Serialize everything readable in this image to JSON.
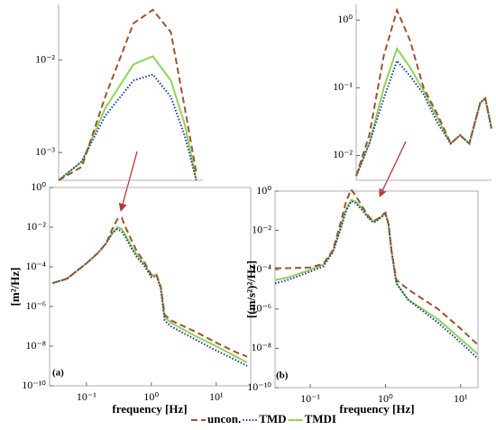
{
  "chart_data": [
    {
      "type": "line",
      "xlog": true,
      "ylog": true,
      "panel": "(a)",
      "xlabel": "frequency [Hz]",
      "ylabel": "[m²/Hz]",
      "xlim": [
        0.027,
        34
      ],
      "ylim": [
        1e-10,
        1
      ],
      "xticks": [
        {
          "value": 0.1,
          "label": "10⁻¹"
        },
        {
          "value": 1,
          "label": "10⁰"
        },
        {
          "value": 10,
          "label": "10¹"
        }
      ],
      "yticks": [
        {
          "value": 1e-10,
          "label": "10⁻¹⁰"
        },
        {
          "value": 1e-08,
          "label": "10⁻⁸"
        },
        {
          "value": 1e-06,
          "label": "10⁻⁶"
        },
        {
          "value": 0.0001,
          "label": "10⁻⁴"
        },
        {
          "value": 0.01,
          "label": "10⁻²"
        },
        {
          "value": 1,
          "label": "10⁰"
        }
      ],
      "x": [
        0.03,
        0.05,
        0.1,
        0.15,
        0.2,
        0.25,
        0.3,
        0.35,
        0.4,
        0.5,
        0.6,
        0.8,
        1,
        1.2,
        1.4,
        1.6,
        2,
        5,
        10,
        20,
        30
      ],
      "series": [
        {
          "name": "uncon.",
          "color": "#a0522d",
          "style": "dashed",
          "values": [
            1.5e-05,
            2.5e-05,
            0.00015,
            0.0005,
            0.0015,
            0.008,
            0.025,
            0.03,
            0.01,
            0.002,
            0.0006,
            0.00015,
            4e-05,
            4e-05,
            1e-05,
            4e-07,
            2e-07,
            5e-08,
            1.5e-08,
            5e-09,
            3e-09
          ]
        },
        {
          "name": "TMD",
          "color": "#1a3a9a",
          "style": "dotted",
          "values": [
            1.5e-05,
            2.5e-05,
            0.00015,
            0.0005,
            0.0015,
            0.005,
            0.008,
            0.006,
            0.003,
            0.0008,
            0.0003,
            0.0001,
            3e-05,
            3.5e-05,
            8e-06,
            2e-07,
            1e-07,
            2e-08,
            6e-09,
            2e-09,
            1e-09
          ]
        },
        {
          "name": "TMDI",
          "color": "#8fd45a",
          "style": "solid",
          "values": [
            1.5e-05,
            2.5e-05,
            0.00015,
            0.0005,
            0.0015,
            0.005,
            0.01,
            0.008,
            0.004,
            0.001,
            0.0004,
            0.00012,
            3.5e-05,
            4e-05,
            9e-06,
            3e-07,
            1.5e-07,
            3e-08,
            1e-08,
            3e-09,
            1.5e-09
          ]
        }
      ]
    },
    {
      "type": "line",
      "xlog": true,
      "ylog": true,
      "panel": "(b)",
      "xlabel": "frequency [Hz]",
      "ylabel": "[(m/s²)²/Hz]",
      "xlim": [
        0.034,
        17
      ],
      "ylim": [
        1e-10,
        1
      ],
      "xticks": [
        {
          "value": 0.1,
          "label": "10⁻¹"
        },
        {
          "value": 1,
          "label": "10⁰"
        },
        {
          "value": 10,
          "label": "10¹"
        }
      ],
      "yticks": [
        {
          "value": 1e-10,
          "label": "10⁻¹⁰"
        },
        {
          "value": 1e-08,
          "label": "10⁻⁸"
        },
        {
          "value": 1e-06,
          "label": "10⁻⁶"
        },
        {
          "value": 0.0001,
          "label": "10⁻⁴"
        },
        {
          "value": 0.01,
          "label": "10⁻²"
        },
        {
          "value": 1,
          "label": "10⁰"
        }
      ],
      "x": [
        0.034,
        0.05,
        0.1,
        0.15,
        0.2,
        0.25,
        0.3,
        0.35,
        0.4,
        0.5,
        0.6,
        0.7,
        0.8,
        0.9,
        1.0,
        1.1,
        1.2,
        1.4,
        2,
        5,
        10,
        17
      ],
      "series": [
        {
          "color": "#a0522d",
          "style": "dashed",
          "values": [
            0.00012,
            0.00012,
            0.00013,
            0.0002,
            0.001,
            0.02,
            0.3,
            1.2,
            0.6,
            0.15,
            0.05,
            0.03,
            0.04,
            0.06,
            0.08,
            0.02,
            0.001,
            3e-05,
            1e-05,
            1e-06,
            1e-07,
            1.5e-08
          ]
        },
        {
          "color": "#1a3a9a",
          "style": "dotted",
          "values": [
            2e-05,
            3e-05,
            8e-05,
            0.00015,
            0.0008,
            0.01,
            0.1,
            0.3,
            0.25,
            0.1,
            0.04,
            0.025,
            0.035,
            0.05,
            0.07,
            0.02,
            0.001,
            2e-05,
            3e-06,
            2e-07,
            2e-08,
            3e-09
          ]
        },
        {
          "color": "#8fd45a",
          "style": "solid",
          "values": [
            3e-05,
            4e-05,
            0.0001,
            0.00018,
            0.0009,
            0.012,
            0.12,
            0.35,
            0.3,
            0.12,
            0.045,
            0.028,
            0.038,
            0.055,
            0.075,
            0.02,
            0.001,
            2e-05,
            3e-06,
            3e-07,
            3e-08,
            5e-09
          ]
        }
      ]
    },
    {
      "type": "line",
      "xlog": true,
      "ylog": true,
      "xlim": [
        0.1,
        1
      ],
      "ylim": [
        0.0005,
        0.04
      ],
      "yticks": [
        {
          "value": 0.001,
          "label": "10⁻³"
        },
        {
          "value": 0.01,
          "label": "10⁻²"
        }
      ],
      "x": [
        0.1,
        0.145,
        0.21,
        0.33,
        0.45,
        0.6,
        0.75,
        0.9
      ],
      "series": [
        {
          "color": "#a0522d",
          "style": "dashed",
          "values": [
            0.0005,
            0.0007,
            0.004,
            0.025,
            0.035,
            0.02,
            0.003,
            0.0006
          ]
        },
        {
          "color": "#1a3a9a",
          "style": "dotted",
          "values": [
            0.0005,
            0.0008,
            0.0025,
            0.006,
            0.007,
            0.004,
            0.0015,
            0.0005
          ]
        },
        {
          "color": "#8fd45a",
          "style": "solid",
          "values": [
            0.0005,
            0.0008,
            0.003,
            0.009,
            0.011,
            0.006,
            0.002,
            0.0005
          ]
        }
      ]
    },
    {
      "type": "line",
      "xlog": true,
      "ylog": true,
      "xlim": [
        0.2,
        2
      ],
      "ylim": [
        0.0043,
        1.7
      ],
      "yticks": [
        {
          "value": 0.01,
          "label": "10⁻²"
        },
        {
          "value": 0.1,
          "label": "10⁻¹"
        },
        {
          "value": 1,
          "label": "10⁰"
        }
      ],
      "x": [
        0.2,
        0.25,
        0.32,
        0.4,
        0.5,
        0.63,
        0.8,
        1.0,
        1.17,
        1.37,
        1.65,
        1.8,
        2
      ],
      "series": [
        {
          "color": "#a0522d",
          "style": "dashed",
          "values": [
            0.005,
            0.02,
            0.3,
            1.4,
            0.5,
            0.1,
            0.04,
            0.015,
            0.02,
            0.015,
            0.06,
            0.07,
            0.025
          ]
        },
        {
          "color": "#1a3a9a",
          "style": "dotted",
          "values": [
            0.005,
            0.015,
            0.07,
            0.25,
            0.15,
            0.08,
            0.03,
            0.015,
            0.02,
            0.015,
            0.06,
            0.07,
            0.025
          ]
        },
        {
          "color": "#8fd45a",
          "style": "solid",
          "values": [
            0.005,
            0.015,
            0.1,
            0.38,
            0.2,
            0.09,
            0.035,
            0.015,
            0.02,
            0.015,
            0.06,
            0.07,
            0.025
          ]
        }
      ]
    }
  ]
}
